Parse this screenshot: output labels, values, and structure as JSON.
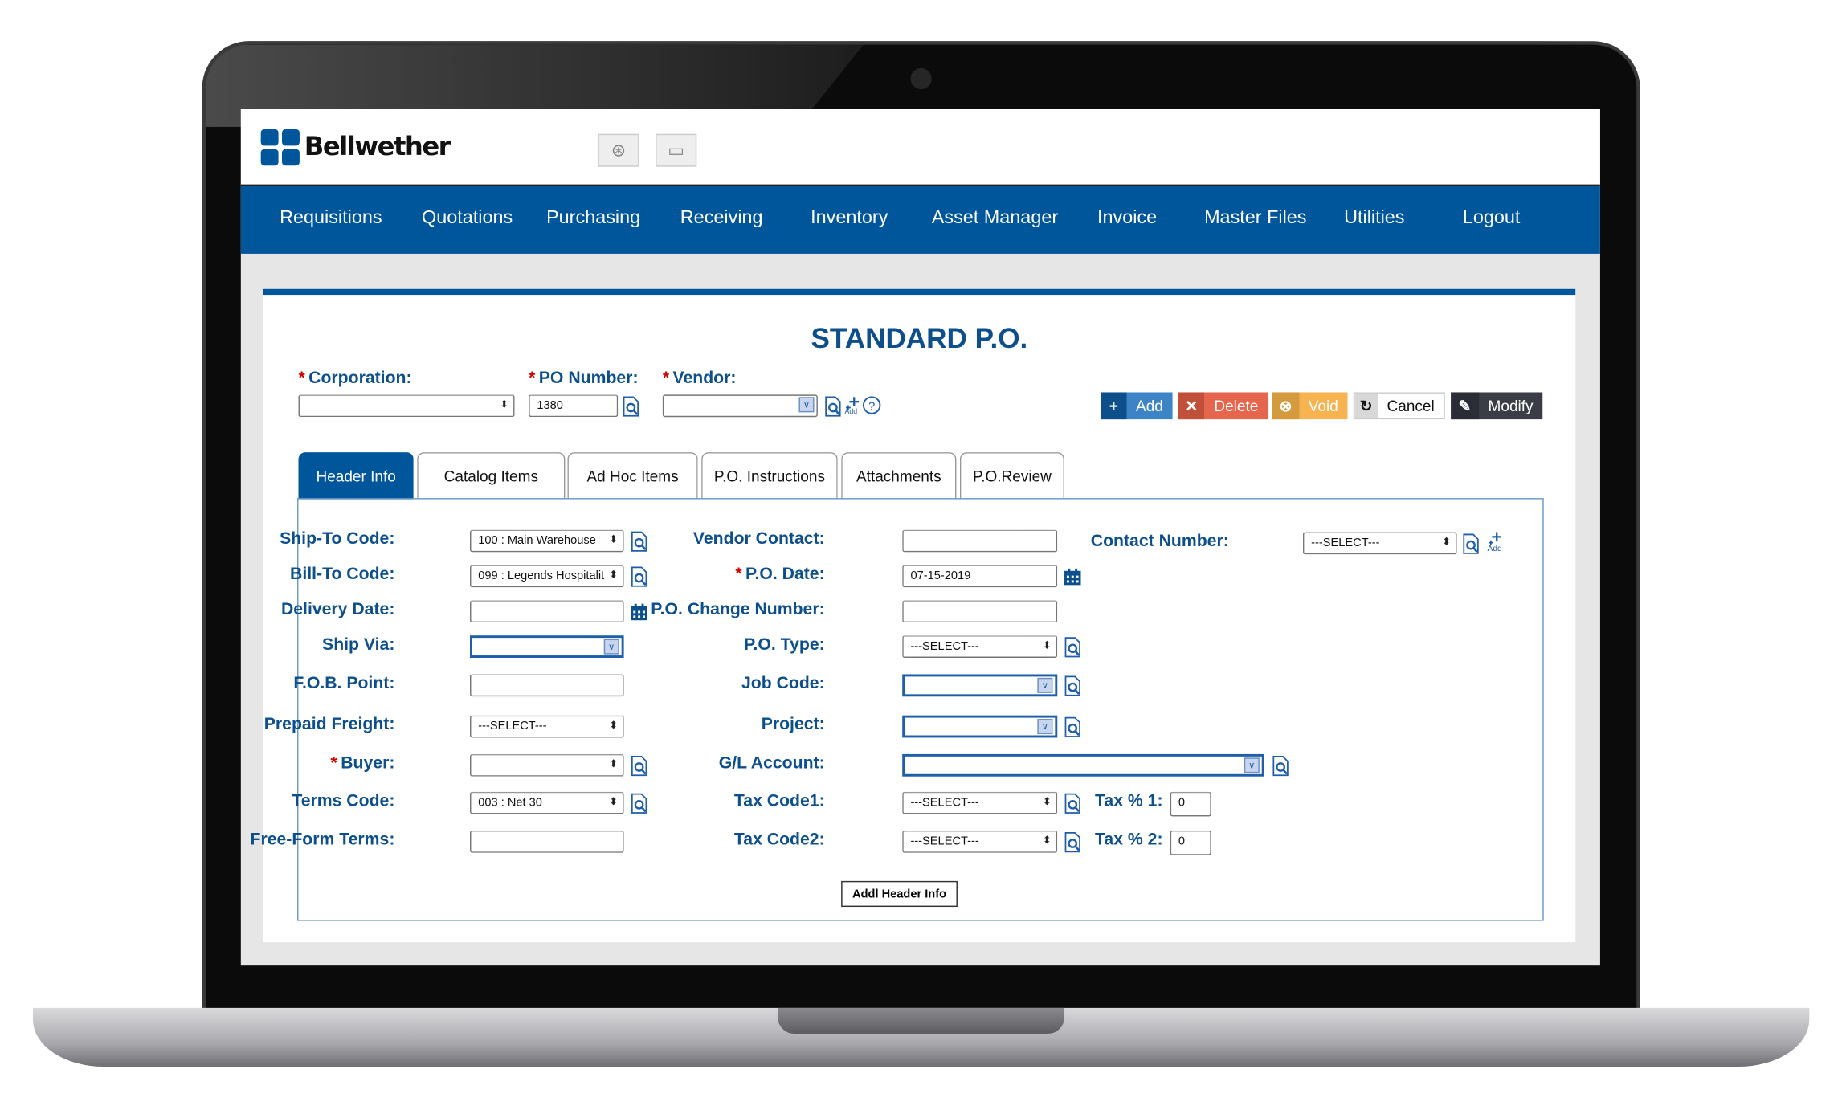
{
  "app": {
    "logo_text": "Bellwether",
    "toolbar_icons": [
      "help-lifebuoy-icon",
      "fullscreen-icon"
    ]
  },
  "nav": [
    "Requisitions",
    "Quotations",
    "Purchasing",
    "Receiving",
    "Inventory",
    "Asset Manager",
    "Invoice",
    "Master Files",
    "Utilities",
    "Logout"
  ],
  "page": {
    "title": "STANDARD P.O."
  },
  "top_fields": {
    "corporation": {
      "label": "Corporation:",
      "required": true,
      "value": ""
    },
    "po_number": {
      "label": "PO Number:",
      "required": true,
      "value": "1380"
    },
    "vendor": {
      "label": "Vendor:",
      "required": true,
      "value": "",
      "add_label": "Add"
    }
  },
  "actions": [
    {
      "label": "Add",
      "icon": "+",
      "icon_bg": "#0d4f8b",
      "bg": "#3d84c6",
      "fg": "#fff"
    },
    {
      "label": "Delete",
      "icon": "✕",
      "icon_bg": "#c0503a",
      "bg": "#e5664d",
      "fg": "#fff"
    },
    {
      "label": "Void",
      "icon": "⊗",
      "icon_bg": "#d39a3e",
      "bg": "#f6b350",
      "fg": "#fff"
    },
    {
      "label": "Cancel",
      "icon": "↻",
      "icon_bg": "#d8d8d8",
      "bg": "#fff",
      "fg": "#111"
    },
    {
      "label": "Modify",
      "icon": "✎",
      "icon_bg": "#2a2d36",
      "bg": "#3a3d46",
      "fg": "#fff"
    }
  ],
  "tabs": [
    {
      "label": "Header Info",
      "active": true
    },
    {
      "label": "Catalog Items",
      "active": false
    },
    {
      "label": "Ad Hoc Items",
      "active": false
    },
    {
      "label": "P.O. Instructions",
      "active": false
    },
    {
      "label": "Attachments",
      "active": false
    },
    {
      "label": "P.O.Review",
      "active": false
    }
  ],
  "form": {
    "left": [
      {
        "label": "Ship-To Code:",
        "type": "select",
        "value": "100 : Main Warehouse",
        "icons": [
          "lookup"
        ]
      },
      {
        "label": "Bill-To Code:",
        "type": "select",
        "value": "099 : Legends Hospitalit",
        "icons": [
          "lookup"
        ]
      },
      {
        "label": "Delivery Date:",
        "type": "text",
        "value": "",
        "icons": [
          "calendar"
        ]
      },
      {
        "label": "Ship Via:",
        "type": "combo",
        "value": "",
        "icons": []
      },
      {
        "label": "F.O.B. Point:",
        "type": "text",
        "value": "",
        "icons": []
      },
      {
        "label": "Prepaid Freight:",
        "type": "select",
        "value": "---SELECT---",
        "icons": []
      },
      {
        "label": "Buyer:",
        "required": true,
        "type": "select",
        "value": "",
        "icons": [
          "lookup"
        ]
      },
      {
        "label": "Terms Code:",
        "type": "select",
        "value": "003 : Net 30",
        "icons": [
          "lookup"
        ]
      },
      {
        "label": "Free-Form Terms:",
        "type": "text",
        "value": "",
        "icons": []
      }
    ],
    "middle": [
      {
        "label": "Vendor Contact:",
        "type": "text",
        "value": "",
        "icons": []
      },
      {
        "label": "P.O. Date:",
        "required": true,
        "type": "text",
        "value": "07-15-2019",
        "icons": [
          "calendar"
        ]
      },
      {
        "label": "P.O. Change Number:",
        "type": "text",
        "value": "",
        "icons": []
      },
      {
        "label": "P.O. Type:",
        "type": "select",
        "value": "---SELECT---",
        "icons": [
          "lookup"
        ]
      },
      {
        "label": "Job Code:",
        "type": "combo",
        "value": "",
        "icons": [
          "lookup"
        ]
      },
      {
        "label": "Project:",
        "type": "combo",
        "value": "",
        "icons": [
          "lookup"
        ]
      },
      {
        "label": "G/L Account:",
        "type": "combo",
        "value": "",
        "icons": [
          "lookup"
        ],
        "wide": true
      },
      {
        "label": "Tax Code1:",
        "type": "select",
        "value": "---SELECT---",
        "icons": [
          "lookup"
        ]
      },
      {
        "label": "Tax Code2:",
        "type": "select",
        "value": "---SELECT---",
        "icons": [
          "lookup"
        ]
      }
    ],
    "tax_pct": [
      {
        "label": "Tax % 1:",
        "value": "0"
      },
      {
        "label": "Tax % 2:",
        "value": "0"
      }
    ],
    "right": {
      "label": "Contact Number:",
      "type": "select",
      "value": "---SELECT---",
      "add_label": "Add"
    },
    "addl_button": "Addl Header Info"
  },
  "colors": {
    "brand": "#00569a",
    "label": "#0d4f8b",
    "required": "#d40000"
  }
}
